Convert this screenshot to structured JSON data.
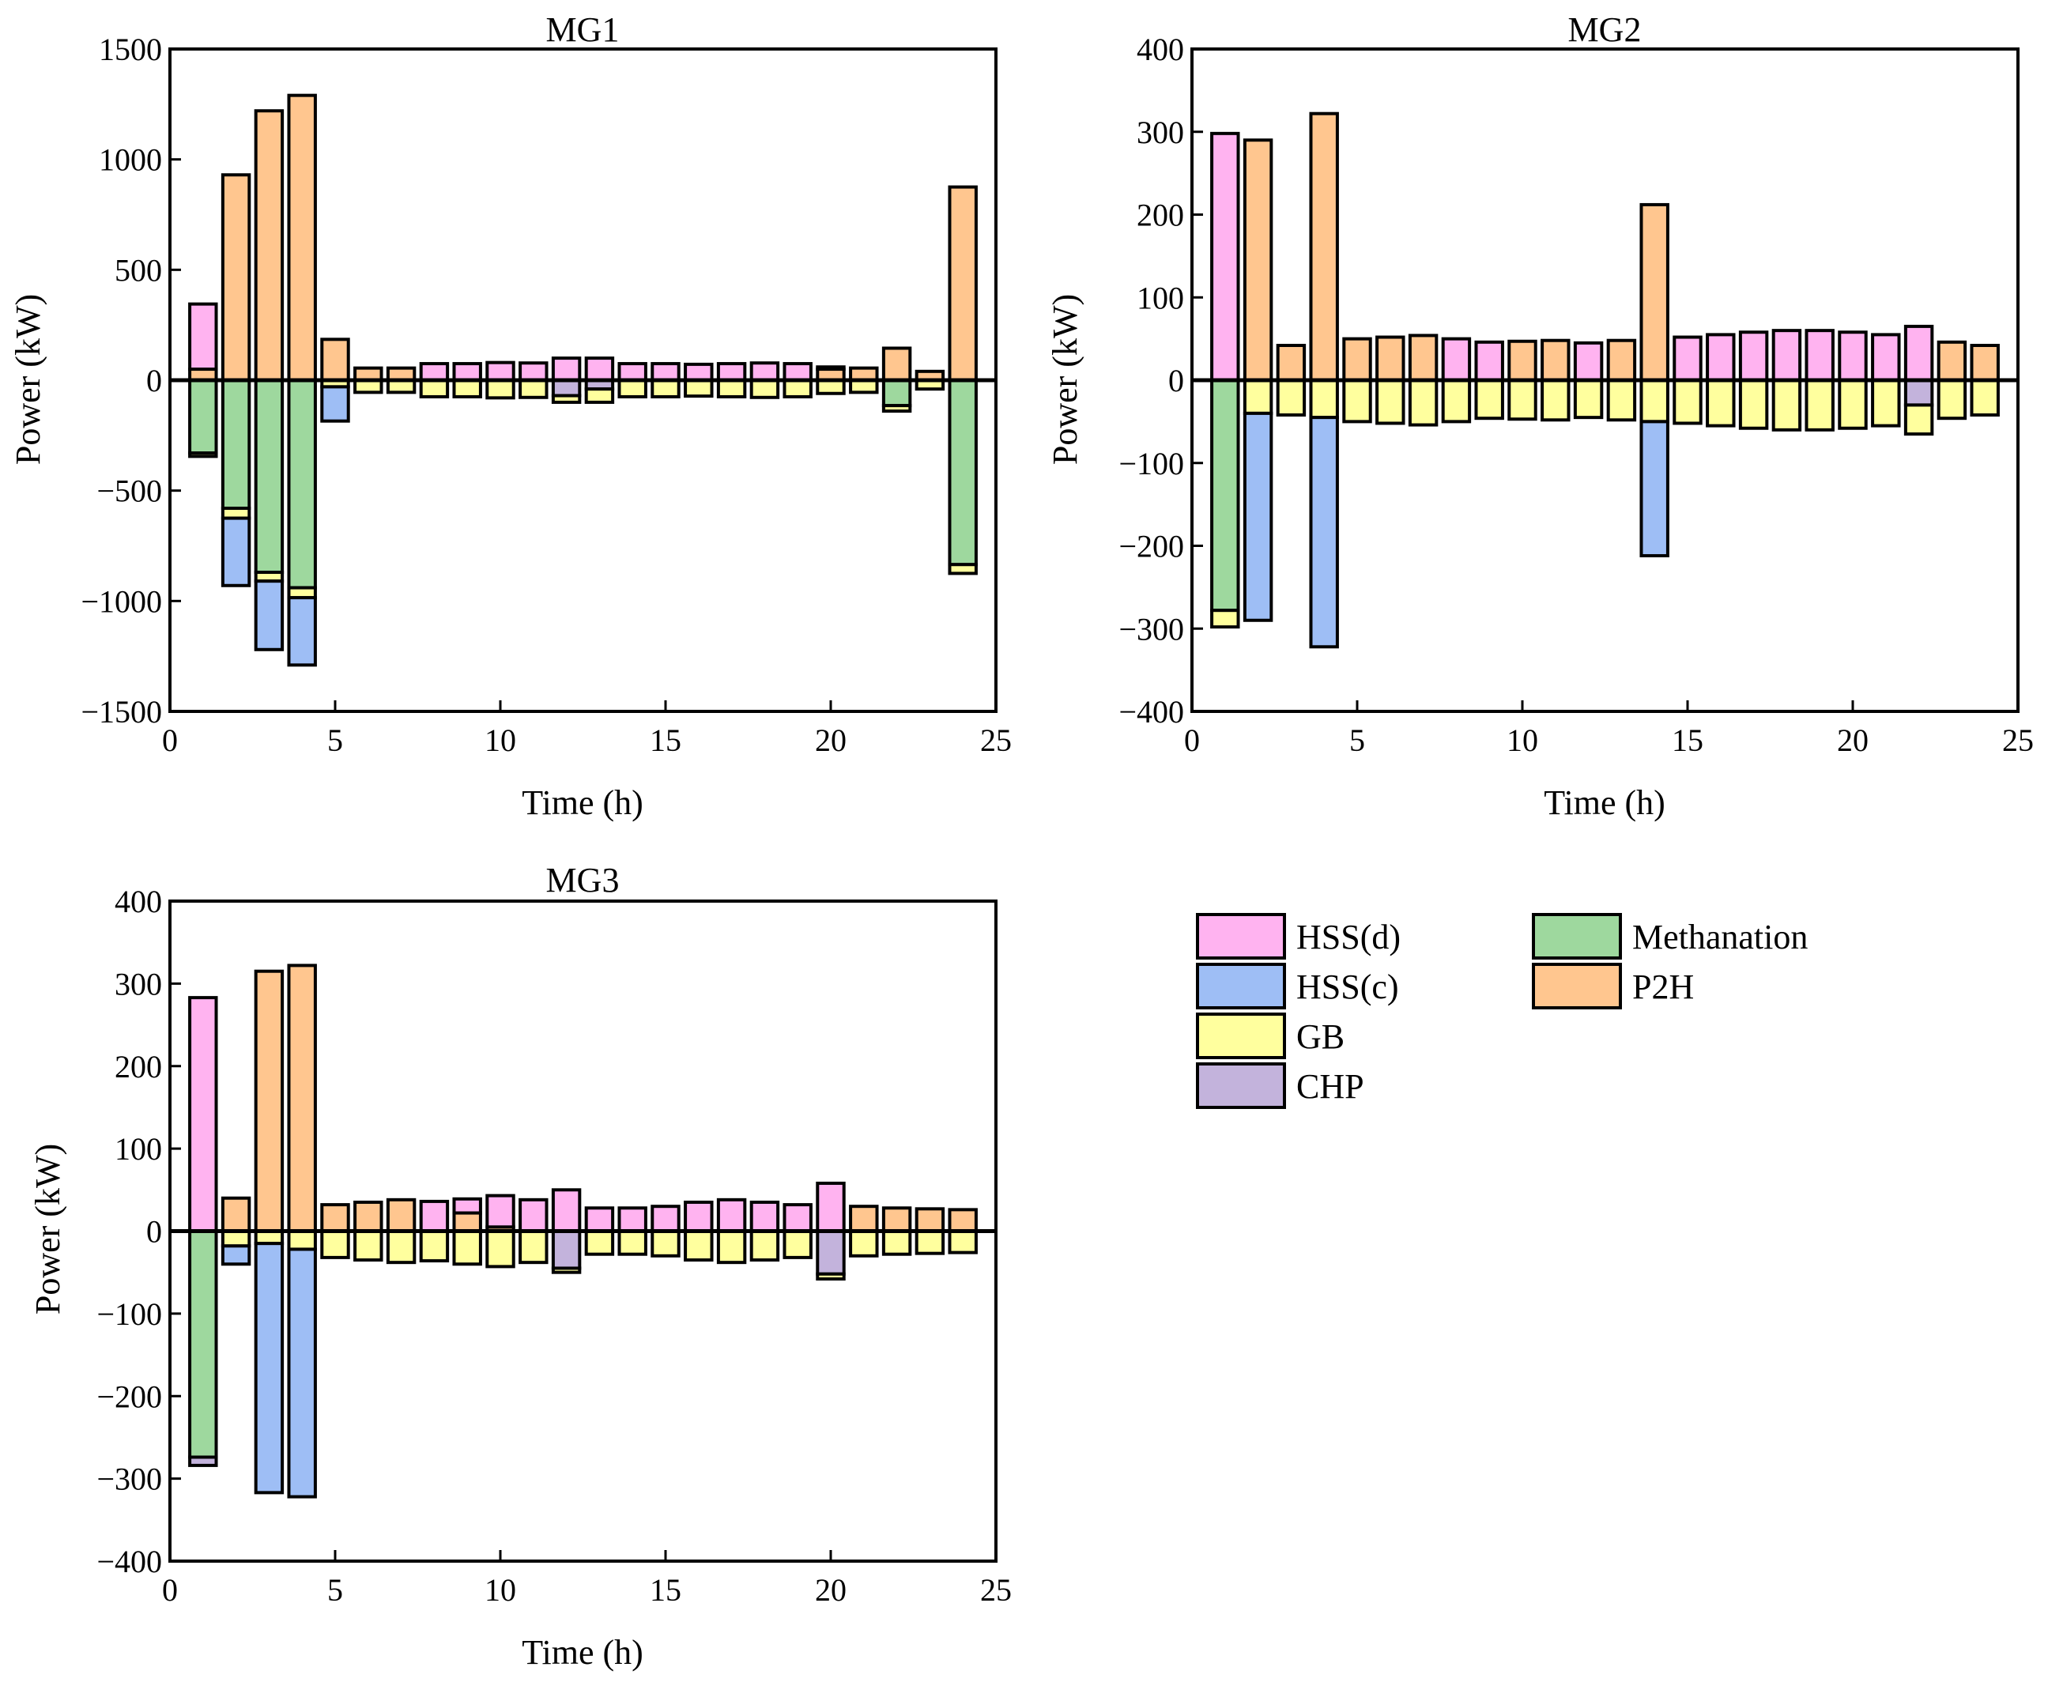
{
  "legend": [
    {
      "key": "hss_d",
      "label": "HSS(d)",
      "color": "#FFB3F0"
    },
    {
      "key": "hss_c",
      "label": "HSS(c)",
      "color": "#9EBEF5"
    },
    {
      "key": "gb",
      "label": "GB",
      "color": "#FFFF9E"
    },
    {
      "key": "chp",
      "label": "CHP",
      "color": "#C3B3DC"
    },
    {
      "key": "methanation",
      "label": "Methanation",
      "color": "#9ED89E"
    },
    {
      "key": "p2h",
      "label": "P2H",
      "color": "#FFC68F"
    }
  ],
  "chart_data": [
    {
      "type": "bar",
      "stacked": true,
      "title": "MG1",
      "xlabel": "Time (h)",
      "ylabel": "Power (kW)",
      "xlim": [
        0,
        25
      ],
      "ylim": [
        -1500,
        1500
      ],
      "xticks": [
        0,
        5,
        10,
        15,
        20,
        25
      ],
      "yticks": [
        -1500,
        -1000,
        -500,
        0,
        500,
        1000,
        1500
      ],
      "ytick_labels": [
        "−1500",
        "−1000",
        "−500",
        "0",
        "500",
        "1000",
        "1500"
      ],
      "categories": [
        1,
        2,
        3,
        4,
        5,
        6,
        7,
        8,
        9,
        10,
        11,
        12,
        13,
        14,
        15,
        16,
        17,
        18,
        19,
        20,
        21,
        22,
        23,
        24
      ],
      "series": [
        {
          "name": "P2H",
          "values": [
            50,
            930,
            1220,
            1290,
            185,
            55,
            55,
            0,
            0,
            0,
            0,
            0,
            0,
            0,
            0,
            0,
            0,
            0,
            0,
            50,
            55,
            145,
            40,
            875
          ]
        },
        {
          "name": "HSS(d)",
          "values": [
            295,
            0,
            0,
            0,
            0,
            0,
            0,
            75,
            75,
            80,
            78,
            100,
            100,
            75,
            75,
            72,
            75,
            78,
            75,
            10,
            0,
            0,
            0,
            0
          ]
        },
        {
          "name": "Methanation",
          "values": [
            -330,
            -580,
            -870,
            -940,
            0,
            0,
            0,
            0,
            0,
            0,
            0,
            0,
            0,
            0,
            0,
            0,
            0,
            0,
            0,
            0,
            0,
            -115,
            0,
            -835
          ]
        },
        {
          "name": "CHP",
          "values": [
            0,
            0,
            0,
            0,
            0,
            0,
            0,
            0,
            0,
            0,
            0,
            -70,
            -40,
            0,
            0,
            0,
            0,
            0,
            0,
            0,
            0,
            0,
            0,
            0
          ]
        },
        {
          "name": "GB",
          "values": [
            -15,
            -45,
            -40,
            -45,
            -30,
            -55,
            -55,
            -75,
            -75,
            -80,
            -78,
            -30,
            -60,
            -75,
            -75,
            -72,
            -75,
            -78,
            -75,
            -60,
            -55,
            -25,
            -40,
            -40
          ]
        },
        {
          "name": "HSS(c)",
          "values": [
            0,
            -305,
            -310,
            -305,
            -155,
            0,
            0,
            0,
            0,
            0,
            0,
            0,
            0,
            0,
            0,
            0,
            0,
            0,
            0,
            0,
            0,
            0,
            0,
            0
          ]
        }
      ]
    },
    {
      "type": "bar",
      "stacked": true,
      "title": "MG2",
      "xlabel": "Time (h)",
      "ylabel": "Power (kW)",
      "xlim": [
        0,
        25
      ],
      "ylim": [
        -400,
        400
      ],
      "xticks": [
        0,
        5,
        10,
        15,
        20,
        25
      ],
      "yticks": [
        -400,
        -300,
        -200,
        -100,
        0,
        100,
        200,
        300,
        400
      ],
      "ytick_labels": [
        "−400",
        "−300",
        "−200",
        "−100",
        "0",
        "100",
        "200",
        "300",
        "400"
      ],
      "categories": [
        1,
        2,
        3,
        4,
        5,
        6,
        7,
        8,
        9,
        10,
        11,
        12,
        13,
        14,
        15,
        16,
        17,
        18,
        19,
        20,
        21,
        22,
        23,
        24
      ],
      "series": [
        {
          "name": "P2H",
          "values": [
            0,
            290,
            42,
            322,
            50,
            52,
            54,
            0,
            0,
            47,
            48,
            0,
            48,
            212,
            0,
            0,
            0,
            0,
            0,
            0,
            0,
            0,
            46,
            42
          ]
        },
        {
          "name": "HSS(d)",
          "values": [
            298,
            0,
            0,
            0,
            0,
            0,
            0,
            50,
            46,
            0,
            0,
            45,
            0,
            0,
            52,
            55,
            58,
            60,
            60,
            58,
            55,
            65,
            0,
            0
          ]
        },
        {
          "name": "Methanation",
          "values": [
            -278,
            0,
            0,
            0,
            0,
            0,
            0,
            0,
            0,
            0,
            0,
            0,
            0,
            0,
            0,
            0,
            0,
            0,
            0,
            0,
            0,
            0,
            0,
            0
          ]
        },
        {
          "name": "CHP",
          "values": [
            0,
            0,
            0,
            0,
            0,
            0,
            0,
            0,
            0,
            0,
            0,
            0,
            0,
            0,
            0,
            0,
            0,
            0,
            0,
            0,
            0,
            -30,
            0,
            0
          ]
        },
        {
          "name": "GB",
          "values": [
            -20,
            -40,
            -42,
            -45,
            -50,
            -52,
            -54,
            -50,
            -46,
            -47,
            -48,
            -45,
            -48,
            -50,
            -52,
            -55,
            -58,
            -60,
            -60,
            -58,
            -55,
            -35,
            -46,
            -42
          ]
        },
        {
          "name": "HSS(c)",
          "values": [
            0,
            -250,
            0,
            -277,
            0,
            0,
            0,
            0,
            0,
            0,
            0,
            0,
            0,
            -162,
            0,
            0,
            0,
            0,
            0,
            0,
            0,
            0,
            0,
            0
          ]
        }
      ]
    },
    {
      "type": "bar",
      "stacked": true,
      "title": "MG3",
      "xlabel": "Time (h)",
      "ylabel": "Power (kW)",
      "xlim": [
        0,
        25
      ],
      "ylim": [
        -400,
        400
      ],
      "xticks": [
        0,
        5,
        10,
        15,
        20,
        25
      ],
      "yticks": [
        -400,
        -300,
        -200,
        -100,
        0,
        100,
        200,
        300,
        400
      ],
      "ytick_labels": [
        "−400",
        "−300",
        "−200",
        "−100",
        "0",
        "100",
        "200",
        "300",
        "400"
      ],
      "categories": [
        1,
        2,
        3,
        4,
        5,
        6,
        7,
        8,
        9,
        10,
        11,
        12,
        13,
        14,
        15,
        16,
        17,
        18,
        19,
        20,
        21,
        22,
        23,
        24
      ],
      "series": [
        {
          "name": "P2H",
          "values": [
            0,
            40,
            315,
            322,
            32,
            35,
            38,
            0,
            22,
            5,
            0,
            0,
            0,
            0,
            0,
            0,
            0,
            0,
            0,
            0,
            30,
            28,
            27,
            26
          ]
        },
        {
          "name": "HSS(d)",
          "values": [
            283,
            0,
            0,
            0,
            0,
            0,
            0,
            36,
            17,
            38,
            38,
            50,
            28,
            28,
            30,
            35,
            38,
            35,
            32,
            58,
            0,
            0,
            0,
            0
          ]
        },
        {
          "name": "Methanation",
          "values": [
            -274,
            0,
            0,
            0,
            0,
            0,
            0,
            0,
            0,
            0,
            0,
            0,
            0,
            0,
            0,
            0,
            0,
            0,
            0,
            0,
            0,
            0,
            0,
            0
          ]
        },
        {
          "name": "CHP",
          "values": [
            -10,
            0,
            0,
            0,
            0,
            0,
            0,
            0,
            0,
            0,
            0,
            -45,
            0,
            0,
            0,
            0,
            0,
            0,
            0,
            -52,
            0,
            0,
            0,
            0
          ]
        },
        {
          "name": "GB",
          "values": [
            0,
            -18,
            -15,
            -22,
            -32,
            -35,
            -38,
            -36,
            -40,
            -43,
            -38,
            -5,
            -28,
            -28,
            -30,
            -35,
            -38,
            -35,
            -32,
            -6,
            -30,
            -28,
            -27,
            -26
          ]
        },
        {
          "name": "HSS(c)",
          "values": [
            0,
            -22,
            -302,
            -300,
            0,
            0,
            0,
            0,
            0,
            0,
            0,
            0,
            0,
            0,
            0,
            0,
            0,
            0,
            0,
            0,
            0,
            0,
            0,
            0
          ]
        }
      ]
    }
  ]
}
